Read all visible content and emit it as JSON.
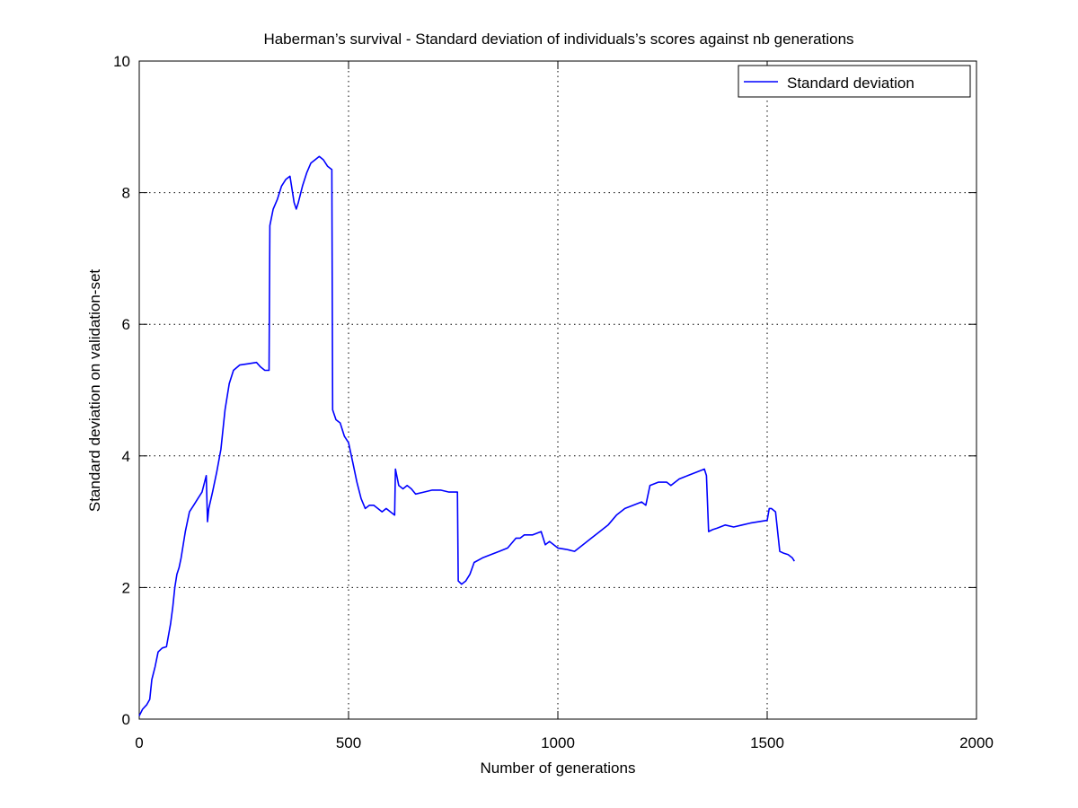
{
  "chart_data": {
    "type": "line",
    "title": "Haberman’s survival - Standard deviation of individuals’s scores against nb generations",
    "xlabel": "Number of generations",
    "ylabel": "Standard deviation on validation-set",
    "xlim": [
      0,
      2000
    ],
    "ylim": [
      0,
      10
    ],
    "xticks": [
      0,
      500,
      1000,
      1500,
      2000
    ],
    "yticks": [
      0,
      2,
      4,
      6,
      8,
      10
    ],
    "xtick_labels": [
      "0",
      "500",
      "1000",
      "1500",
      "2000"
    ],
    "ytick_labels": [
      "0",
      "2",
      "4",
      "6",
      "8",
      "10"
    ],
    "grid": true,
    "legend_position": "top-right",
    "colors": {
      "series": "#0000ff",
      "axes": "#000000",
      "grid": "#000000"
    },
    "series": [
      {
        "name": "Standard deviation",
        "x": [
          0,
          8,
          18,
          25,
          30,
          38,
          45,
          55,
          65,
          75,
          80,
          85,
          90,
          95,
          100,
          110,
          120,
          130,
          140,
          150,
          160,
          163,
          166,
          175,
          185,
          195,
          205,
          215,
          225,
          240,
          260,
          280,
          290,
          300,
          310,
          312,
          320,
          330,
          340,
          350,
          360,
          370,
          375,
          380,
          390,
          400,
          410,
          420,
          430,
          440,
          450,
          460,
          462,
          470,
          480,
          490,
          500,
          510,
          520,
          530,
          540,
          550,
          560,
          570,
          580,
          590,
          600,
          610,
          612,
          620,
          630,
          640,
          650,
          660,
          680,
          700,
          720,
          740,
          760,
          762,
          770,
          780,
          790,
          800,
          820,
          840,
          860,
          880,
          900,
          910,
          920,
          940,
          960,
          970,
          980,
          1000,
          1020,
          1040,
          1060,
          1080,
          1100,
          1120,
          1140,
          1160,
          1180,
          1200,
          1210,
          1220,
          1240,
          1260,
          1270,
          1290,
          1310,
          1330,
          1350,
          1355,
          1360,
          1370,
          1380,
          1400,
          1420,
          1440,
          1460,
          1480,
          1500,
          1505,
          1510,
          1520,
          1530,
          1540,
          1550,
          1560,
          1565
        ],
        "y": [
          0.05,
          0.15,
          0.22,
          0.3,
          0.6,
          0.8,
          1.02,
          1.08,
          1.1,
          1.45,
          1.7,
          2.0,
          2.2,
          2.3,
          2.45,
          2.85,
          3.15,
          3.25,
          3.35,
          3.45,
          3.7,
          3.0,
          3.2,
          3.45,
          3.75,
          4.1,
          4.7,
          5.1,
          5.3,
          5.38,
          5.4,
          5.42,
          5.35,
          5.3,
          5.3,
          7.5,
          7.75,
          7.9,
          8.1,
          8.2,
          8.25,
          7.85,
          7.75,
          7.85,
          8.1,
          8.3,
          8.45,
          8.5,
          8.55,
          8.5,
          8.4,
          8.35,
          4.7,
          4.55,
          4.5,
          4.3,
          4.2,
          3.9,
          3.6,
          3.35,
          3.2,
          3.25,
          3.25,
          3.2,
          3.15,
          3.2,
          3.15,
          3.1,
          3.8,
          3.55,
          3.5,
          3.55,
          3.5,
          3.42,
          3.45,
          3.48,
          3.48,
          3.45,
          3.45,
          2.1,
          2.05,
          2.1,
          2.2,
          2.38,
          2.45,
          2.5,
          2.55,
          2.6,
          2.75,
          2.75,
          2.8,
          2.8,
          2.85,
          2.65,
          2.7,
          2.6,
          2.58,
          2.55,
          2.65,
          2.75,
          2.85,
          2.95,
          3.1,
          3.2,
          3.25,
          3.3,
          3.25,
          3.55,
          3.6,
          3.6,
          3.55,
          3.65,
          3.7,
          3.75,
          3.8,
          3.7,
          2.85,
          2.88,
          2.9,
          2.95,
          2.92,
          2.95,
          2.98,
          3.0,
          3.02,
          3.2,
          3.2,
          3.15,
          2.55,
          2.52,
          2.5,
          2.45,
          2.4
        ]
      }
    ]
  }
}
